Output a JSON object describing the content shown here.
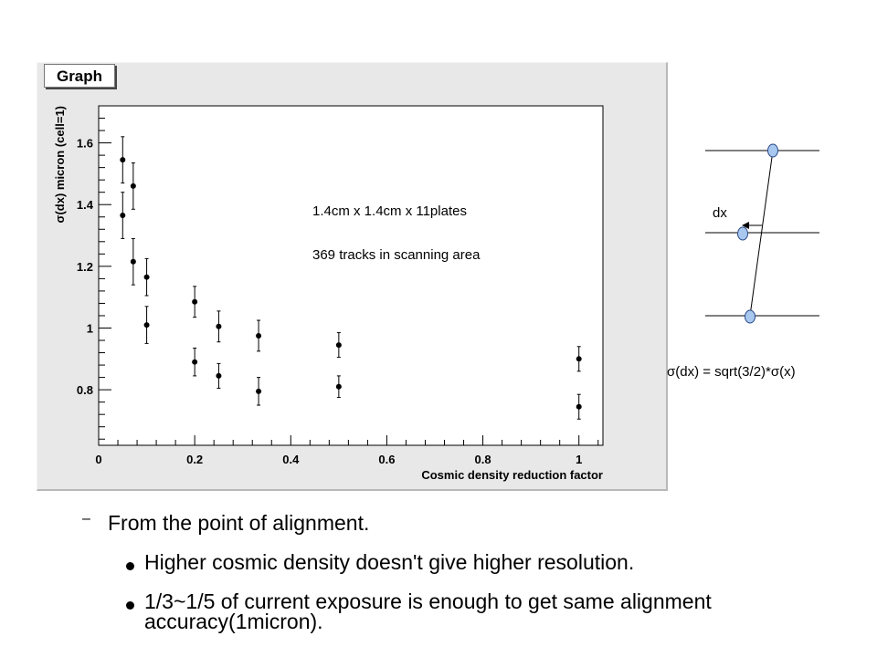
{
  "chart_data": {
    "type": "scatter",
    "title": "Graph",
    "xlabel": "Cosmic density reduction factor",
    "ylabel": "σ(dx) micron (cell=1)",
    "xlim": [
      0,
      1.05
    ],
    "ylim": [
      0.62,
      1.72
    ],
    "xticks": [
      0,
      0.2,
      0.4,
      0.6,
      0.8,
      1
    ],
    "xtick_labels": [
      "0",
      "0.2",
      "0.4",
      "0.6",
      "0.8",
      "1"
    ],
    "yticks": [
      0.8,
      1,
      1.2,
      1.4,
      1.6
    ],
    "ytick_labels": [
      "0.8",
      "1",
      "1.2",
      "1.4",
      "1.6"
    ],
    "grid": false,
    "legend": "none",
    "series": [
      {
        "points": [
          {
            "x": 0.05,
            "y": 1.545,
            "err": 0.075
          },
          {
            "x": 0.05,
            "y": 1.365,
            "err": 0.075
          },
          {
            "x": 0.072,
            "y": 1.46,
            "err": 0.075
          },
          {
            "x": 0.072,
            "y": 1.215,
            "err": 0.075
          },
          {
            "x": 0.1,
            "y": 1.165,
            "err": 0.06
          },
          {
            "x": 0.1,
            "y": 1.01,
            "err": 0.06
          },
          {
            "x": 0.2,
            "y": 1.085,
            "err": 0.05
          },
          {
            "x": 0.2,
            "y": 0.89,
            "err": 0.045
          },
          {
            "x": 0.25,
            "y": 1.005,
            "err": 0.05
          },
          {
            "x": 0.25,
            "y": 0.845,
            "err": 0.04
          },
          {
            "x": 0.333,
            "y": 0.975,
            "err": 0.05
          },
          {
            "x": 0.333,
            "y": 0.795,
            "err": 0.045
          },
          {
            "x": 0.5,
            "y": 0.945,
            "err": 0.04
          },
          {
            "x": 0.5,
            "y": 0.81,
            "err": 0.035
          },
          {
            "x": 1.0,
            "y": 0.9,
            "err": 0.04
          },
          {
            "x": 1.0,
            "y": 0.745,
            "err": 0.04
          }
        ],
        "color": "#000000"
      }
    ],
    "annotations": [
      "1.4cm x 1.4cm x 11plates",
      "369 tracks in scanning area"
    ]
  },
  "diagram": {
    "dx_label": "dx",
    "formula": "σ(dx) = sqrt(3/2)*σ(x)",
    "node_color": "#a8c8f0"
  },
  "bullets": {
    "level1": "From the point of alignment.",
    "level1_marker": "–",
    "level2": [
      "Higher cosmic density doesn't give higher resolution.",
      "1/3~1/5 of current exposure is enough to get same alignment accuracy(1micron)."
    ]
  }
}
